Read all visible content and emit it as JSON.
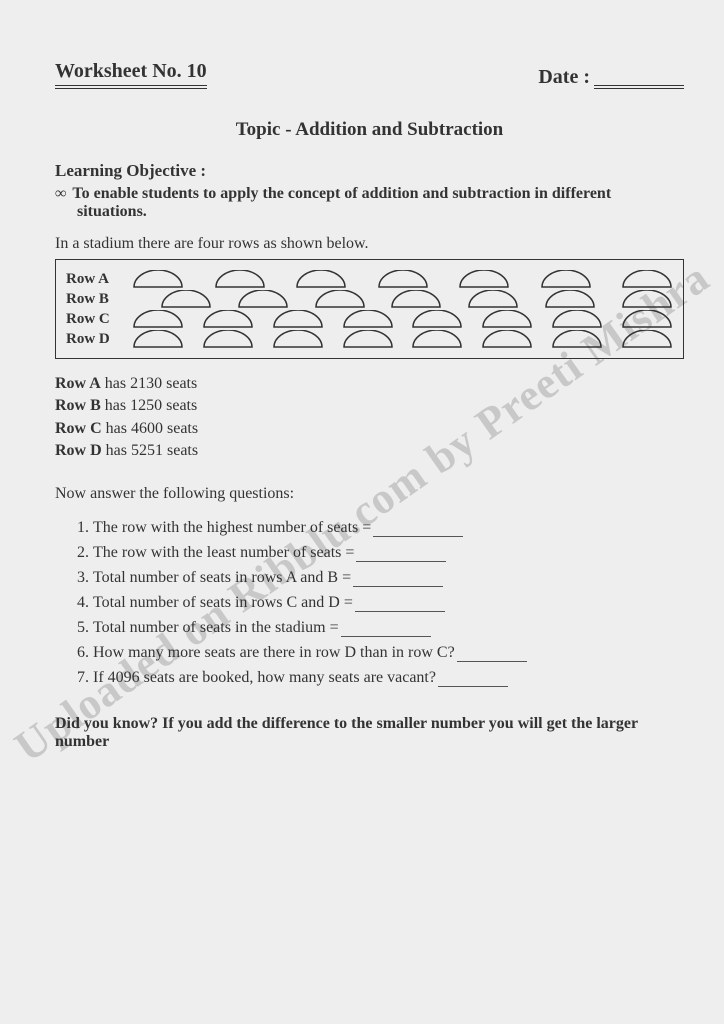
{
  "header": {
    "worksheet_label": "Worksheet No. 10",
    "date_label": "Date :"
  },
  "topic": "Topic - Addition and Subtraction",
  "objective": {
    "label": "Learning Objective :",
    "bullet": "∞",
    "text": "To enable students to apply the concept of addition and subtraction in different situations."
  },
  "intro": "In a stadium there are four rows as shown below.",
  "stadium": {
    "rows": [
      {
        "label": "Row A",
        "seats": 7,
        "offset": false
      },
      {
        "label": "Row B",
        "seats": 7,
        "offset": true
      },
      {
        "label": "Row C",
        "seats": 8,
        "offset": false
      },
      {
        "label": "Row D",
        "seats": 8,
        "offset": false
      }
    ],
    "seat_stroke": "#333333",
    "seat_fill": "none",
    "seat_stroke_width": 1.5
  },
  "row_data": [
    {
      "label": "Row A",
      "text": " has 2130 seats"
    },
    {
      "label": "Row B",
      "text": " has 1250 seats"
    },
    {
      "label": "Row C",
      "text": " has 4600 seats"
    },
    {
      "label": "Row D",
      "text": " has 5251 seats"
    }
  ],
  "questions_intro": "Now answer the following questions:",
  "questions": [
    "The row with the highest number of seats =",
    "The row with the least number of seats =",
    "Total number of seats in rows A and B =",
    "Total number of seats in rows C and D =",
    "Total number of seats in the stadium =",
    "How many more seats are there in row D than in row C?",
    "If 4096 seats are booked, how many seats are vacant?"
  ],
  "footer": "Did you know? If you add the difference to the smaller number you will get the larger number",
  "watermark": "Uploaded on Ribblu.com by Preeti Mishra",
  "colors": {
    "background": "#eeeeee",
    "text": "#333333",
    "watermark": "#c8c8c8"
  }
}
